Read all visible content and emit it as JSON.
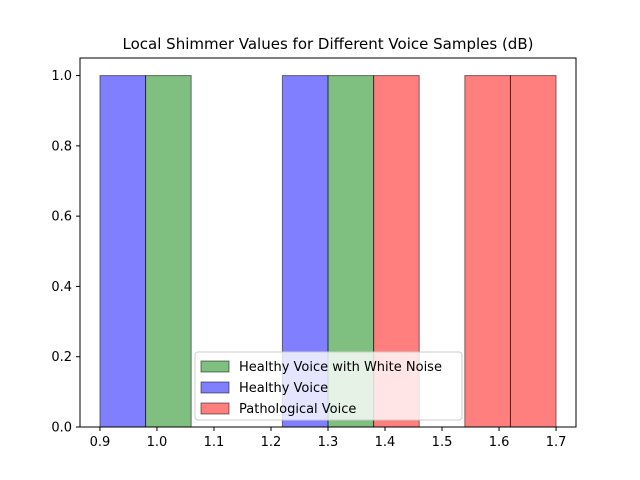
{
  "chart_data": {
    "type": "bar",
    "title": "Local Shimmer Values for Different Voice Samples (dB)",
    "xlabel": "",
    "ylabel": "",
    "xlim": [
      0.865,
      1.735
    ],
    "ylim": [
      0,
      1.05
    ],
    "xticks": [
      "0.9",
      "1.0",
      "1.1",
      "1.2",
      "1.3",
      "1.4",
      "1.5",
      "1.6",
      "1.7"
    ],
    "yticks": [
      "0.0",
      "0.2",
      "0.4",
      "0.6",
      "0.8",
      "1.0"
    ],
    "grid": false,
    "legend_position": "lower center",
    "series": [
      {
        "name": "Healthy Voice with White Noise",
        "color": "#008000",
        "bins": [
          {
            "x0": 0.98,
            "x1": 1.06,
            "value": 1
          },
          {
            "x0": 1.3,
            "x1": 1.38,
            "value": 1
          }
        ]
      },
      {
        "name": "Healthy Voice",
        "color": "#0000ff",
        "bins": [
          {
            "x0": 0.9,
            "x1": 0.98,
            "value": 1
          },
          {
            "x0": 1.22,
            "x1": 1.3,
            "value": 1
          }
        ]
      },
      {
        "name": "Pathological Voice",
        "color": "#ff0000",
        "bins": [
          {
            "x0": 1.38,
            "x1": 1.46,
            "value": 1
          },
          {
            "x0": 1.54,
            "x1": 1.62,
            "value": 1
          },
          {
            "x0": 1.62,
            "x1": 1.7,
            "value": 1
          }
        ]
      }
    ]
  }
}
